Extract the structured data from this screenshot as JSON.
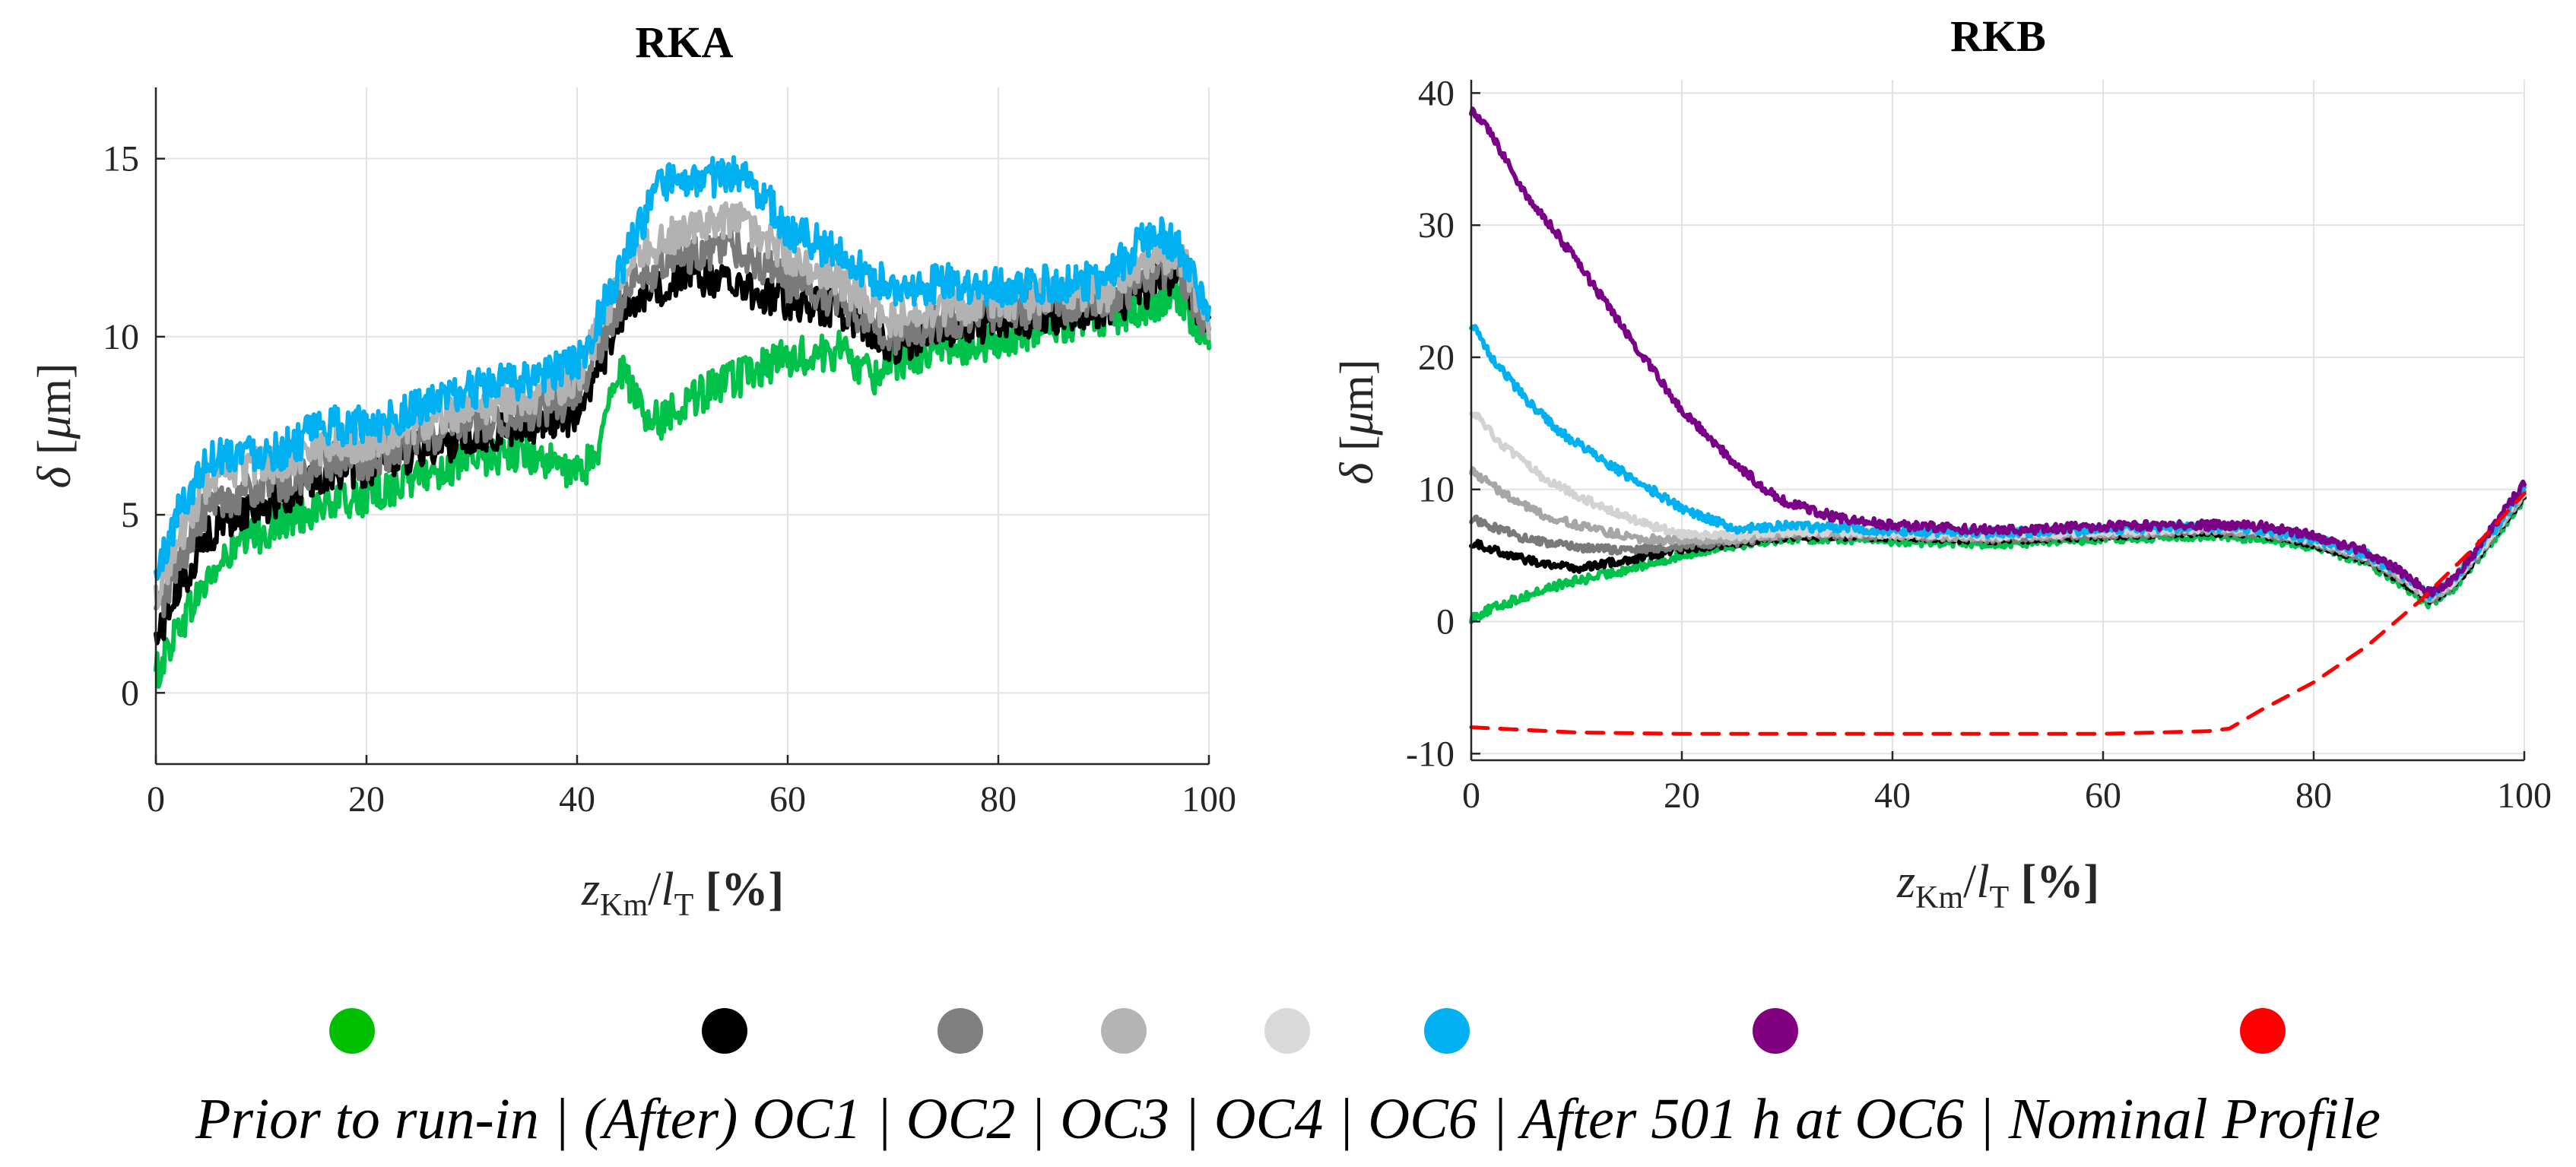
{
  "chart_data": [
    {
      "type": "line",
      "title": "RKA",
      "xlabel": "z_Km/l_T [%]",
      "ylabel": "δ [μm]",
      "xlim": [
        0,
        100
      ],
      "ylim": [
        -2,
        17
      ],
      "xticks": [
        0,
        20,
        40,
        60,
        80,
        100
      ],
      "yticks": [
        0,
        5,
        10,
        15
      ],
      "grid": true,
      "series": [
        {
          "name": "Prior to run-in",
          "color": "#00c24a",
          "noise": 0.55,
          "x": [
            0,
            2,
            5,
            8,
            12,
            16,
            20,
            25,
            30,
            35,
            40,
            42,
            44,
            46,
            48,
            50,
            55,
            60,
            65,
            68,
            70,
            75,
            80,
            85,
            90,
            95,
            97,
            100
          ],
          "y": [
            0.5,
            1.8,
            3.2,
            4.2,
            4.8,
            5.3,
            5.5,
            6.1,
            6.5,
            6.8,
            6.1,
            6.8,
            9.2,
            8.0,
            7.6,
            8.2,
            8.8,
            9.4,
            9.6,
            8.9,
            9.3,
            9.7,
            9.9,
            10.3,
            10.5,
            11.0,
            11.2,
            9.9
          ]
        },
        {
          "name": "OC1",
          "color": "#000000",
          "noise": 0.55,
          "x": [
            0,
            2,
            5,
            8,
            12,
            16,
            20,
            25,
            30,
            35,
            40,
            45,
            50,
            55,
            60,
            65,
            70,
            75,
            80,
            85,
            90,
            95,
            97,
            100
          ],
          "y": [
            1.5,
            2.8,
            4.5,
            5.0,
            5.5,
            6.2,
            6.3,
            6.8,
            7.2,
            7.5,
            7.8,
            11.0,
            11.7,
            11.5,
            11.0,
            10.8,
            9.8,
            10.2,
            10.4,
            10.6,
            10.7,
            11.5,
            11.8,
            10.1
          ]
        },
        {
          "name": "OC2",
          "color": "#7a7a7a",
          "noise": 0.55,
          "x": [
            0,
            2,
            5,
            8,
            12,
            16,
            20,
            25,
            30,
            35,
            40,
            45,
            50,
            55,
            60,
            65,
            70,
            75,
            80,
            85,
            90,
            95,
            97,
            100
          ],
          "y": [
            2.2,
            3.5,
            5.3,
            5.6,
            5.8,
            6.5,
            6.5,
            7.1,
            7.5,
            7.8,
            8.3,
            11.5,
            12.3,
            12.5,
            11.5,
            11.0,
            10.0,
            10.5,
            10.7,
            10.8,
            10.9,
            11.8,
            12.0,
            10.2
          ]
        },
        {
          "name": "OC3",
          "color": "#b2b2b2",
          "noise": 0.55,
          "x": [
            0,
            2,
            5,
            8,
            12,
            16,
            20,
            25,
            30,
            35,
            40,
            45,
            50,
            55,
            60,
            65,
            70,
            75,
            80,
            85,
            90,
            95,
            97,
            100
          ],
          "y": [
            2.8,
            4.2,
            6.0,
            6.3,
            6.5,
            7.0,
            7.0,
            7.6,
            8.0,
            8.3,
            8.8,
            12.2,
            13.0,
            13.3,
            12.3,
            11.5,
            10.5,
            10.8,
            11.0,
            11.1,
            11.2,
            12.2,
            12.5,
            10.4
          ]
        },
        {
          "name": "OC6",
          "color": "#00b0f0",
          "noise": 0.55,
          "x": [
            0,
            2,
            5,
            8,
            12,
            16,
            20,
            25,
            30,
            35,
            40,
            45,
            48,
            50,
            55,
            58,
            60,
            65,
            70,
            75,
            80,
            85,
            90,
            95,
            97,
            100
          ],
          "y": [
            3.2,
            5.0,
            6.6,
            6.8,
            6.8,
            7.5,
            7.5,
            8.0,
            8.5,
            8.8,
            9.2,
            12.5,
            14.3,
            14.3,
            14.6,
            13.9,
            13.0,
            12.3,
            11.3,
            11.5,
            11.4,
            11.5,
            11.6,
            13.0,
            12.5,
            10.6
          ]
        }
      ]
    },
    {
      "type": "line",
      "title": "RKB",
      "xlabel": "z_Km/l_T [%]",
      "ylabel": "δ [μm]",
      "xlim": [
        0,
        100
      ],
      "ylim": [
        -10.5,
        41
      ],
      "xticks": [
        0,
        20,
        40,
        60,
        80,
        100
      ],
      "yticks": [
        -10,
        0,
        10,
        20,
        30,
        40
      ],
      "grid": true,
      "series": [
        {
          "name": "Prior to run-in",
          "color": "#00c24a",
          "noise": 0.35,
          "x": [
            0,
            3,
            8,
            13,
            18,
            23,
            30,
            35,
            40,
            50,
            60,
            70,
            75,
            80,
            85,
            88,
            91,
            93,
            96,
            100
          ],
          "y": [
            0.3,
            1.3,
            2.7,
            3.6,
            4.6,
            5.6,
            6.3,
            6.3,
            6.1,
            5.9,
            6.3,
            6.5,
            6.3,
            5.7,
            4.5,
            3.0,
            1.3,
            2.2,
            5.0,
            9.3
          ]
        },
        {
          "name": "OC1",
          "color": "#000000",
          "noise": 0.3,
          "x": [
            0,
            5,
            10,
            15,
            20,
            25,
            30,
            35,
            40,
            50,
            60,
            70,
            75,
            80,
            85,
            88,
            91,
            93,
            96,
            100
          ],
          "y": [
            6.0,
            4.7,
            4.0,
            4.7,
            5.5,
            5.9,
            6.4,
            6.5,
            6.4,
            6.2,
            6.5,
            6.8,
            6.6,
            5.9,
            4.7,
            3.3,
            1.6,
            2.5,
            5.3,
            9.5
          ]
        },
        {
          "name": "OC2",
          "color": "#7a7a7a",
          "noise": 0.3,
          "x": [
            0,
            5,
            10,
            15,
            20,
            25,
            30,
            35,
            40,
            50,
            60,
            70,
            75,
            80,
            85,
            88,
            91,
            93,
            96,
            100
          ],
          "y": [
            7.8,
            6.3,
            5.6,
            5.4,
            5.7,
            6.0,
            6.6,
            6.6,
            6.5,
            6.3,
            6.6,
            6.9,
            6.7,
            6.0,
            4.8,
            3.4,
            1.7,
            2.6,
            5.4,
            9.6
          ]
        },
        {
          "name": "OC3",
          "color": "#a6a6a6",
          "noise": 0.3,
          "x": [
            0,
            3,
            7,
            12,
            16,
            20,
            25,
            30,
            35,
            40,
            50,
            60,
            70,
            75,
            80,
            85,
            88,
            91,
            93,
            96,
            100
          ],
          "y": [
            11.5,
            9.7,
            8.0,
            6.9,
            6.3,
            6.1,
            6.2,
            6.7,
            6.7,
            6.6,
            6.4,
            6.7,
            7.0,
            6.8,
            6.1,
            4.9,
            3.5,
            1.8,
            2.7,
            5.5,
            9.7
          ]
        },
        {
          "name": "OC4",
          "color": "#d3d3d3",
          "noise": 0.3,
          "x": [
            0,
            3,
            7,
            12,
            16,
            20,
            25,
            30,
            35,
            40,
            50,
            60,
            70,
            75,
            80,
            85,
            88,
            91,
            93,
            96,
            100
          ],
          "y": [
            16.0,
            13.3,
            10.8,
            8.8,
            7.5,
            6.6,
            6.5,
            6.8,
            6.8,
            6.7,
            6.5,
            6.8,
            7.1,
            6.9,
            6.2,
            5.0,
            3.6,
            1.9,
            2.8,
            5.6,
            9.8
          ]
        },
        {
          "name": "OC6",
          "color": "#00b0f0",
          "noise": 0.35,
          "x": [
            0,
            2,
            5,
            8,
            12,
            16,
            20,
            25,
            30,
            35,
            40,
            50,
            60,
            70,
            75,
            80,
            85,
            88,
            91,
            93,
            96,
            100
          ],
          "y": [
            22.5,
            20.0,
            17.0,
            14.6,
            12.4,
            10.5,
            8.6,
            7.0,
            7.2,
            7.1,
            6.9,
            6.7,
            7.0,
            7.2,
            7.0,
            6.3,
            5.1,
            3.7,
            2.0,
            2.9,
            5.7,
            10.0
          ]
        },
        {
          "name": "After 501 h at OC6",
          "color": "#7a0088",
          "noise": 0.35,
          "x": [
            0,
            2,
            5,
            8,
            12,
            16,
            20,
            25,
            28,
            30,
            35,
            40,
            50,
            60,
            70,
            75,
            80,
            85,
            88,
            91,
            93,
            96,
            100
          ],
          "y": [
            38.7,
            36.8,
            32.5,
            29.5,
            25.0,
            20.4,
            16.0,
            12.0,
            10.0,
            9.0,
            7.8,
            7.3,
            6.9,
            7.2,
            7.3,
            7.2,
            6.5,
            5.3,
            3.9,
            2.1,
            3.0,
            6.0,
            10.5
          ]
        },
        {
          "name": "Nominal Profile",
          "color": "#ff0000",
          "noise": 0,
          "dashed": true,
          "x": [
            0,
            10,
            20,
            30,
            40,
            50,
            60,
            70,
            72,
            75,
            80,
            85,
            90,
            95,
            100
          ],
          "y": [
            -8.0,
            -8.4,
            -8.5,
            -8.5,
            -8.5,
            -8.5,
            -8.5,
            -8.3,
            -8.1,
            -6.7,
            -4.6,
            -1.9,
            1.5,
            5.4,
            9.7
          ]
        }
      ]
    }
  ],
  "legend": {
    "text": "Prior to run-in | (After) OC1 | OC2 | OC3 | OC4 | OC6 | After 501 h at OC6 | Nominal Profile",
    "markers": [
      {
        "name": "Prior to run-in",
        "color": "#00c000"
      },
      {
        "name": "OC1",
        "color": "#000000"
      },
      {
        "name": "OC2",
        "color": "#808080"
      },
      {
        "name": "OC3",
        "color": "#b4b4b4"
      },
      {
        "name": "OC4",
        "color": "#d9d9d9"
      },
      {
        "name": "OC6",
        "color": "#00b0f0"
      },
      {
        "name": "After 501 h at OC6",
        "color": "#800080"
      },
      {
        "name": "Nominal Profile",
        "color": "#ff0000"
      }
    ]
  }
}
